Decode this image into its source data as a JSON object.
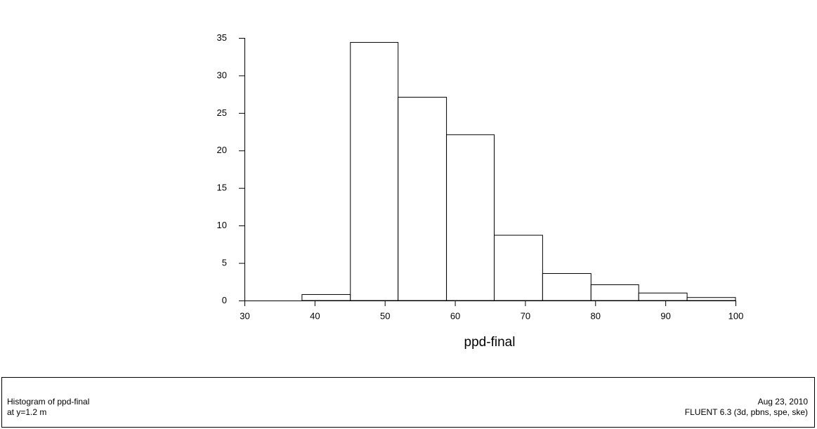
{
  "chart_data": {
    "type": "histogram",
    "xlabel": "ppd-final",
    "bins": [
      38.2,
      45.1,
      51.9,
      58.8,
      65.6,
      72.5,
      79.4,
      86.2,
      93.1,
      100
    ],
    "counts": [
      0.8,
      34.4,
      27.1,
      22.1,
      8.7,
      3.6,
      2.1,
      1.0,
      0.4
    ],
    "color": "#ffffff",
    "xlim": [
      30,
      100
    ],
    "xticks": [
      30,
      40,
      50,
      60,
      70,
      80,
      90,
      100
    ],
    "ylim": [
      0,
      35
    ],
    "yticks": [
      0,
      5,
      10,
      15,
      20,
      25,
      30,
      35
    ],
    "grid": false
  },
  "footer": {
    "left": [
      "Histogram of ppd-final",
      "at y=1.2 m"
    ],
    "right": [
      "Aug 23, 2010",
      "FLUENT 6.3 (3d, pbns, spe, ske)"
    ]
  }
}
